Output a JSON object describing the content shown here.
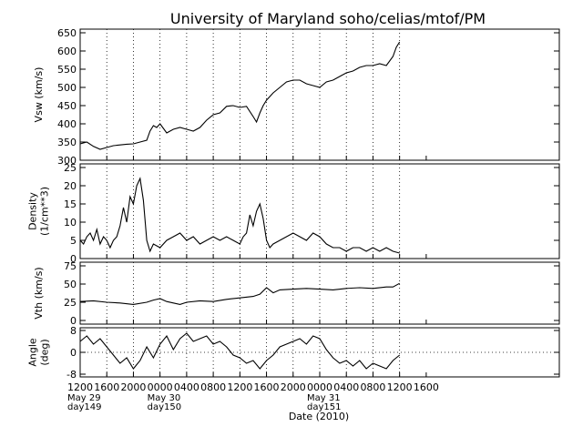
{
  "chart_data": {
    "type": "line",
    "title": "University of Maryland  soho/celias/mtof/PM",
    "xlabel": "Date (2010)",
    "x_unit": "hours since 1200 UT May 29, 2010",
    "x_range": [
      0,
      72
    ],
    "x_ticks": [
      {
        "x": 0,
        "label": "1200",
        "sub": [
          "May 29",
          "day149"
        ]
      },
      {
        "x": 4,
        "label": "1600"
      },
      {
        "x": 8,
        "label": "2000"
      },
      {
        "x": 12,
        "label": "0000",
        "sub": [
          "May 30",
          "day150"
        ]
      },
      {
        "x": 16,
        "label": "0400"
      },
      {
        "x": 20,
        "label": "0800"
      },
      {
        "x": 24,
        "label": "1200"
      },
      {
        "x": 28,
        "label": "1600"
      },
      {
        "x": 32,
        "label": "2000"
      },
      {
        "x": 36,
        "label": "0000",
        "sub": [
          "May 31",
          "day151"
        ]
      },
      {
        "x": 40,
        "label": "0400"
      },
      {
        "x": 44,
        "label": "0800"
      },
      {
        "x": 48,
        "label": "1200"
      },
      {
        "x": 52,
        "label": "1600"
      }
    ],
    "grid_x": [
      4,
      8,
      12,
      16,
      20,
      24,
      28,
      32,
      36,
      40,
      44,
      48
    ],
    "panels": [
      {
        "key": "vsw",
        "ylabel": [
          "Vsw (km/s)"
        ],
        "ylim": [
          300,
          660
        ],
        "yticks": [
          300,
          350,
          400,
          450,
          500,
          550,
          600,
          650
        ],
        "zero_line": null,
        "series": {
          "x": [
            0,
            1,
            2,
            3,
            4,
            5,
            6,
            7,
            8,
            9,
            10,
            10.5,
            11,
            11.5,
            12,
            13,
            14,
            15,
            16,
            17,
            18,
            19,
            20,
            21,
            22,
            23,
            24,
            25,
            26,
            26.5,
            27,
            27.5,
            28,
            29,
            30,
            31,
            32,
            33,
            34,
            35,
            36,
            37,
            38,
            39,
            40,
            41,
            42,
            43,
            44,
            45,
            46,
            47,
            47.5,
            48
          ],
          "y": [
            345,
            350,
            338,
            330,
            335,
            340,
            342,
            344,
            345,
            350,
            355,
            380,
            395,
            390,
            400,
            375,
            385,
            390,
            385,
            380,
            390,
            410,
            425,
            430,
            448,
            450,
            445,
            448,
            420,
            405,
            430,
            450,
            465,
            485,
            500,
            515,
            520,
            520,
            510,
            505,
            500,
            515,
            520,
            530,
            540,
            545,
            555,
            560,
            560,
            565,
            560,
            585,
            610,
            625
          ]
        }
      },
      {
        "key": "density",
        "ylabel": [
          "Density",
          "(1/cm**3)"
        ],
        "ylim": [
          0,
          26
        ],
        "yticks": [
          0,
          5,
          10,
          15,
          20,
          25
        ],
        "zero_line": null,
        "series": {
          "x": [
            0,
            0.5,
            1,
            1.5,
            2,
            2.5,
            3,
            3.5,
            4,
            4.5,
            5,
            5.5,
            6,
            6.5,
            7,
            7.5,
            8,
            8.5,
            9,
            9.5,
            10,
            10.5,
            11,
            12,
            13,
            14,
            15,
            16,
            17,
            18,
            19,
            20,
            21,
            22,
            23,
            24,
            24.5,
            25,
            25.5,
            26,
            26.5,
            27,
            27.5,
            28,
            28.5,
            29,
            30,
            31,
            32,
            33,
            34,
            35,
            36,
            37,
            38,
            39,
            40,
            41,
            42,
            43,
            44,
            45,
            46,
            47,
            48
          ],
          "y": [
            5,
            4,
            6,
            7,
            5,
            8,
            4,
            6,
            5,
            3,
            5,
            6,
            9,
            14,
            10,
            17,
            15,
            20,
            22,
            16,
            5,
            2,
            4,
            3,
            5,
            6,
            7,
            5,
            6,
            4,
            5,
            6,
            5,
            6,
            5,
            4,
            6,
            7,
            12,
            9,
            13,
            15,
            11,
            5,
            3,
            4,
            5,
            6,
            7,
            6,
            5,
            7,
            6,
            4,
            3,
            3,
            2,
            3,
            3,
            2,
            3,
            2,
            3,
            2,
            1.5
          ]
        }
      },
      {
        "key": "vth",
        "ylabel": [
          "Vth (km/s)"
        ],
        "ylim": [
          -5,
          80
        ],
        "yticks": [
          0,
          25,
          50,
          75
        ],
        "zero_line": null,
        "series": {
          "x": [
            0,
            2,
            4,
            6,
            8,
            10,
            11,
            12,
            13,
            14,
            15,
            16,
            18,
            20,
            22,
            24,
            26,
            27,
            28,
            29,
            30,
            32,
            34,
            36,
            38,
            40,
            42,
            44,
            46,
            47,
            48
          ],
          "y": [
            26,
            27,
            25,
            24,
            22,
            25,
            28,
            30,
            26,
            24,
            22,
            25,
            27,
            26,
            29,
            31,
            33,
            36,
            45,
            38,
            42,
            43,
            44,
            43,
            42,
            44,
            45,
            44,
            46,
            46,
            51
          ]
        }
      },
      {
        "key": "angle",
        "ylabel": [
          "Angle",
          "(deg)"
        ],
        "ylim": [
          -9,
          9
        ],
        "yticks": [
          -8,
          0,
          8
        ],
        "zero_line": 0,
        "series": {
          "x": [
            0,
            1,
            2,
            3,
            4,
            5,
            6,
            7,
            8,
            9,
            10,
            11,
            12,
            13,
            14,
            15,
            16,
            17,
            18,
            19,
            20,
            21,
            22,
            23,
            24,
            25,
            26,
            27,
            28,
            29,
            30,
            31,
            32,
            33,
            34,
            35,
            36,
            37,
            38,
            39,
            40,
            41,
            42,
            43,
            44,
            45,
            46,
            47,
            48
          ],
          "y": [
            4,
            6,
            3,
            5,
            2,
            -1,
            -4,
            -2,
            -6,
            -3,
            2,
            -2,
            3,
            6,
            1,
            5,
            7,
            4,
            5,
            6,
            3,
            4,
            2,
            -1,
            -2,
            -4,
            -3,
            -6,
            -3,
            -1,
            2,
            3,
            4,
            5,
            3,
            6,
            5,
            1,
            -2,
            -4,
            -3,
            -5,
            -3,
            -6,
            -4,
            -5,
            -6,
            -3,
            -1
          ]
        }
      }
    ]
  }
}
